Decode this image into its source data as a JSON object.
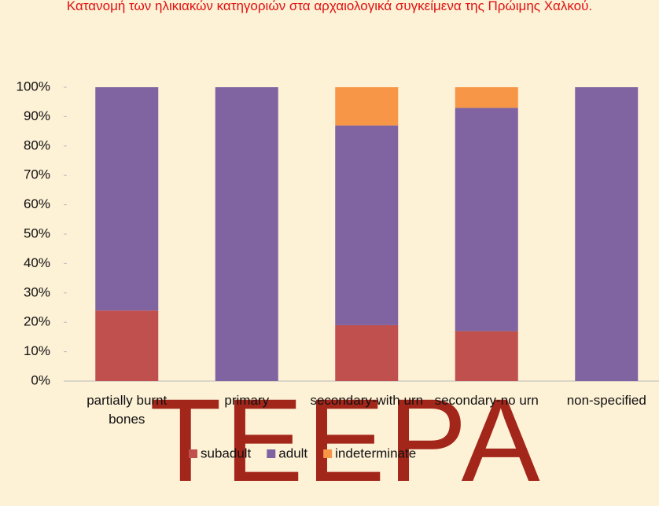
{
  "chart_data": {
    "type": "stacked_bar",
    "title": "Κατανομή των ηλικιακών κατηγοριών στα αρχαιολογικά συγκείμενα της Πρώιμης Χαλκού.",
    "watermark": "TEEPA",
    "categories": [
      "partially burnt bones",
      "primary",
      "secondary-with urn",
      "secondary-no urn",
      "non-specified"
    ],
    "series": [
      {
        "name": "subadult",
        "color": "#c0504d",
        "values": [
          24,
          0,
          19,
          17,
          0
        ]
      },
      {
        "name": "adult",
        "color": "#8064a2",
        "values": [
          76,
          100,
          68,
          76,
          100
        ]
      },
      {
        "name": "indeterminate",
        "color": "#f79646",
        "values": [
          0,
          0,
          13,
          7,
          0
        ]
      }
    ],
    "ylim": [
      0,
      100
    ],
    "yticks": [
      {
        "value": 0,
        "label": "0%"
      },
      {
        "value": 10,
        "label": "10%"
      },
      {
        "value": 20,
        "label": "20%"
      },
      {
        "value": 30,
        "label": "30%"
      },
      {
        "value": 40,
        "label": "40%"
      },
      {
        "value": 50,
        "label": "50%"
      },
      {
        "value": 60,
        "label": "60%"
      },
      {
        "value": 70,
        "label": "70%"
      },
      {
        "value": 80,
        "label": "80%"
      },
      {
        "value": 90,
        "label": "90%"
      },
      {
        "value": 100,
        "label": "100%"
      }
    ],
    "legend": "bottom"
  }
}
